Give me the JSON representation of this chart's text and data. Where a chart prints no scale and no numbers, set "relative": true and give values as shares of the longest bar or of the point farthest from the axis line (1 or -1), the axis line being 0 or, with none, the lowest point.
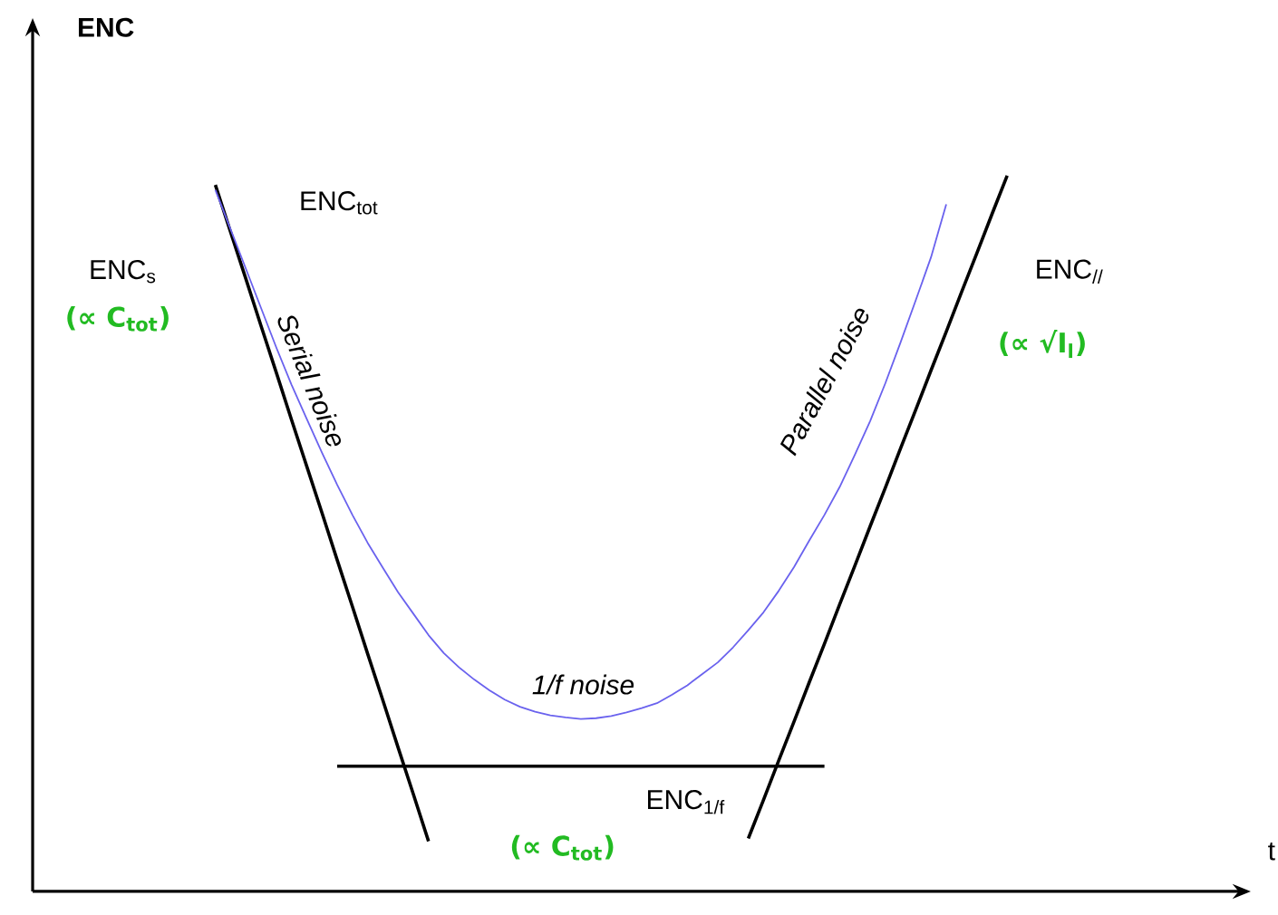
{
  "chart_data": {
    "type": "line",
    "relative": true,
    "marker": "none",
    "line_style": "solid",
    "annotations": [
      "(∝ C$_{tot}$)",
      "(∝ √I$_{l}$)",
      "(∝ C$_{tot}$)",
      "Serial noise",
      "Parallel noise",
      "1/f noise",
      "ENC",
      "t"
    ],
    "categories": [
      null,
      null,
      null,
      null,
      null,
      null,
      null,
      null,
      null,
      null,
      null,
      null,
      null,
      null,
      null,
      null,
      null,
      null,
      null,
      null,
      null,
      null,
      null,
      null,
      null,
      null,
      null,
      null,
      null,
      null,
      null,
      null,
      null,
      null,
      null,
      null,
      null,
      null,
      null,
      null,
      null,
      null,
      null,
      null,
      null,
      null,
      null,
      null,
      null,
      null,
      null,
      null,
      null
    ],
    "series": [
      {
        "name": "ENC$_{s}$",
        "color": "#000000",
        "values": [
          0.987,
          0.921,
          0.856,
          0.79,
          0.725,
          0.659,
          0.594,
          0.529,
          0.463,
          0.398,
          0.332,
          0.267,
          0.201,
          0.136,
          0.07,
          null,
          null,
          null,
          null,
          null,
          null,
          null,
          null,
          null,
          null,
          null,
          null,
          null,
          null,
          null,
          null,
          null,
          null,
          null,
          null,
          null,
          null,
          null,
          null,
          null,
          null,
          null,
          null,
          null,
          null,
          null,
          null,
          null,
          null,
          null,
          null,
          null,
          null
        ]
      },
      {
        "name": "ENC$_{tot}$",
        "color": "#6a62ee",
        "values": [
          0.98,
          0.925,
          0.87,
          0.815,
          0.76,
          0.708,
          0.66,
          0.613,
          0.568,
          0.526,
          0.487,
          0.452,
          0.418,
          0.388,
          0.358,
          0.333,
          0.313,
          0.296,
          0.281,
          0.268,
          0.258,
          0.251,
          0.246,
          0.243,
          0.241,
          0.242,
          0.245,
          0.25,
          0.256,
          0.263,
          0.275,
          0.288,
          0.304,
          0.32,
          0.341,
          0.365,
          0.39,
          0.42,
          0.453,
          0.49,
          0.526,
          0.565,
          0.61,
          0.657,
          0.71,
          0.767,
          0.826,
          0.886,
          0.96,
          null,
          null,
          null,
          null
        ]
      },
      {
        "name": "ENC$_{//}$",
        "color": "#000000",
        "values": [
          null,
          null,
          null,
          null,
          null,
          null,
          null,
          null,
          null,
          null,
          null,
          null,
          null,
          null,
          null,
          null,
          null,
          null,
          null,
          null,
          null,
          null,
          null,
          null,
          null,
          null,
          null,
          null,
          null,
          null,
          null,
          null,
          null,
          null,
          null,
          0.074,
          0.128,
          0.183,
          0.237,
          0.292,
          0.346,
          0.401,
          0.455,
          0.51,
          0.564,
          0.619,
          0.673,
          0.728,
          0.782,
          0.837,
          0.891,
          0.946,
          1.0
        ]
      },
      {
        "name": "ENC$_{1/f}$",
        "color": "#000000",
        "values": [
          null,
          null,
          null,
          null,
          null,
          null,
          null,
          null,
          0.175,
          0.175,
          0.175,
          0.175,
          0.175,
          0.175,
          0.175,
          0.175,
          0.175,
          0.175,
          0.175,
          0.175,
          0.175,
          0.175,
          0.175,
          0.175,
          0.175,
          0.175,
          0.175,
          0.175,
          0.175,
          0.175,
          0.175,
          0.175,
          0.175,
          0.175,
          0.175,
          0.175,
          0.175,
          0.175,
          0.175,
          0.175,
          0.175,
          null,
          null,
          null,
          null,
          null,
          null,
          null,
          null,
          null,
          null,
          null,
          null
        ]
      }
    ]
  }
}
